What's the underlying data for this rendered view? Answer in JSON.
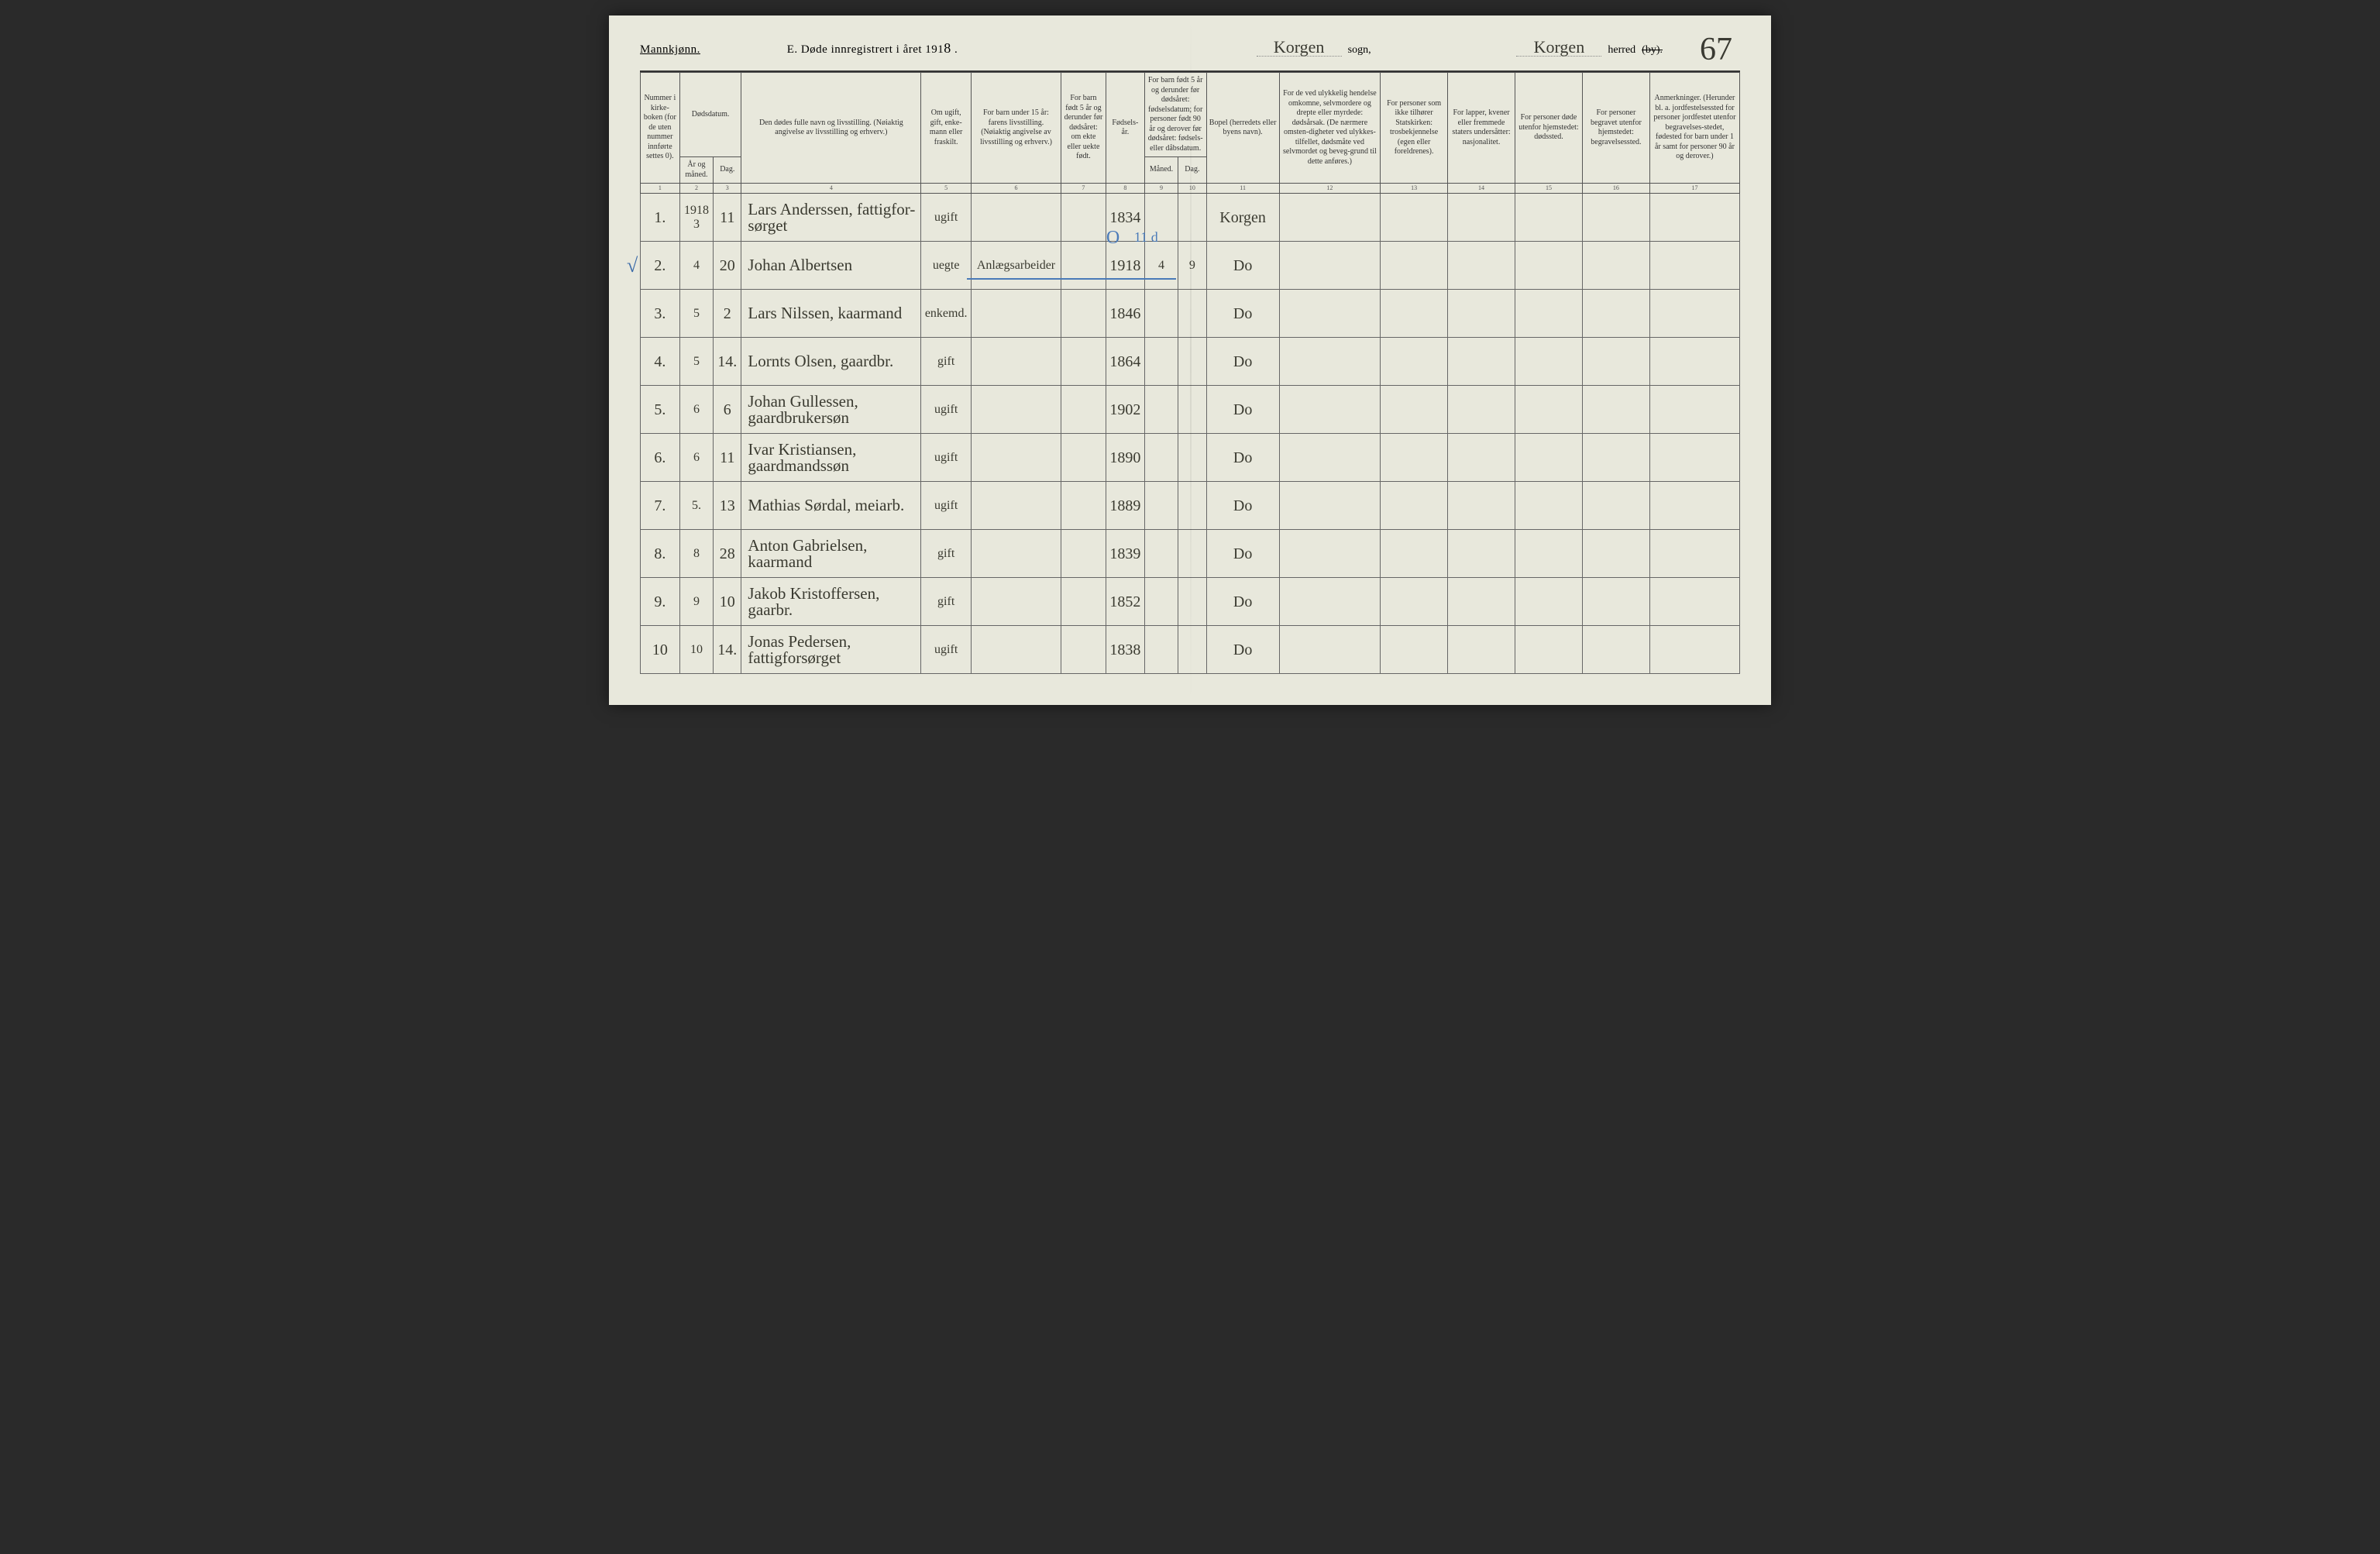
{
  "header": {
    "gender": "Mannkjønn.",
    "title_prefix": "E. Døde innregistrert i året 191",
    "title_year_suffix": "8",
    "title_period": ".",
    "sogn_value": "Korgen",
    "sogn_label": "sogn,",
    "herred_value": "Korgen",
    "herred_label": "herred",
    "herred_strike": "(by).",
    "page_number": "67"
  },
  "columns": {
    "c1": "Nummer i kirke-boken (for de uten nummer innførte settes 0).",
    "c2_top": "Dødsdatum.",
    "c2a": "År og måned.",
    "c2b": "Dag.",
    "c4": "Den dødes fulle navn og livsstilling. (Nøiaktig angivelse av livsstilling og erhverv.)",
    "c5": "Om ugift, gift, enke-mann eller fraskilt.",
    "c6": "For barn under 15 år: farens livsstilling. (Nøiaktig angivelse av livsstilling og erhverv.)",
    "c7": "For barn født 5 år og derunder før dødsåret: om ekte eller uekte født.",
    "c8": "Fødsels-år.",
    "c9_top": "For barn født 5 år og derunder før dødsåret: fødselsdatum; for personer født 90 år og derover før dødsåret: fødsels- eller dåbsdatum.",
    "c9a": "Måned.",
    "c9b": "Dag.",
    "c11": "Bopel (herredets eller byens navn).",
    "c12": "For de ved ulykkelig hendelse omkomne, selvmordere og drepte eller myrdede: dødsårsak. (De nærmere omsten-digheter ved ulykkes-tilfellet, dødsmåte ved selvmordet og beveg-grund til dette anføres.)",
    "c13": "For personer som ikke tilhører Statskirken: trosbekjennelse (egen eller foreldrenes).",
    "c14": "For lapper, kvener eller fremmede staters undersåtter: nasjonalitet.",
    "c15": "For personer døde utenfor hjemstedet: dødssted.",
    "c16": "For personer begravet utenfor hjemstedet: begravelsessted.",
    "c17": "Anmerkninger. (Herunder bl. a. jordfestelsessted for personer jordfestet utenfor begravelses-stedet, fødested for barn under 1 år samt for personer 90 år og derover.)"
  },
  "colnums": [
    "1",
    "2",
    "3",
    "4",
    "5",
    "6",
    "7",
    "8",
    "9",
    "10",
    "11",
    "12",
    "13",
    "14",
    "15",
    "16",
    "17"
  ],
  "rows": [
    {
      "n": "1.",
      "ym": "1918 3",
      "d": "11",
      "name": "Lars Anderssen, fattigfor-sørget",
      "status": "ugift",
      "father": "",
      "ekte": "",
      "birth": "1834",
      "bm": "",
      "bd": "",
      "bopel": "Korgen",
      "check": false,
      "annot": false
    },
    {
      "n": "2.",
      "ym": "4",
      "d": "20",
      "name": "Johan Albertsen",
      "status": "uegte",
      "father": "Anlægsarbeider",
      "ekte": "",
      "birth": "1918",
      "bm": "4",
      "bd": "9",
      "bopel": "Do",
      "check": true,
      "annot": true
    },
    {
      "n": "3.",
      "ym": "5",
      "d": "2",
      "name": "Lars Nilssen, kaarmand",
      "status": "enkemd.",
      "father": "",
      "ekte": "",
      "birth": "1846",
      "bm": "",
      "bd": "",
      "bopel": "Do",
      "check": false,
      "annot": false
    },
    {
      "n": "4.",
      "ym": "5",
      "d": "14.",
      "name": "Lornts Olsen, gaardbr.",
      "status": "gift",
      "father": "",
      "ekte": "",
      "birth": "1864",
      "bm": "",
      "bd": "",
      "bopel": "Do",
      "check": false,
      "annot": false
    },
    {
      "n": "5.",
      "ym": "6",
      "d": "6",
      "name": "Johan Gullessen, gaardbrukersøn",
      "status": "ugift",
      "father": "",
      "ekte": "",
      "birth": "1902",
      "bm": "",
      "bd": "",
      "bopel": "Do",
      "check": false,
      "annot": false
    },
    {
      "n": "6.",
      "ym": "6",
      "d": "11",
      "name": "Ivar Kristiansen, gaardmandssøn",
      "status": "ugift",
      "father": "",
      "ekte": "",
      "birth": "1890",
      "bm": "",
      "bd": "",
      "bopel": "Do",
      "check": false,
      "annot": false
    },
    {
      "n": "7.",
      "ym": "5.",
      "d": "13",
      "name": "Mathias Sørdal, meiarb.",
      "status": "ugift",
      "father": "",
      "ekte": "",
      "birth": "1889",
      "bm": "",
      "bd": "",
      "bopel": "Do",
      "check": false,
      "annot": false
    },
    {
      "n": "8.",
      "ym": "8",
      "d": "28",
      "name": "Anton Gabrielsen, kaarmand",
      "status": "gift",
      "father": "",
      "ekte": "",
      "birth": "1839",
      "bm": "",
      "bd": "",
      "bopel": "Do",
      "check": false,
      "annot": false
    },
    {
      "n": "9.",
      "ym": "9",
      "d": "10",
      "name": "Jakob Kristoffersen, gaarbr.",
      "status": "gift",
      "father": "",
      "ekte": "",
      "birth": "1852",
      "bm": "",
      "bd": "",
      "bopel": "Do",
      "check": false,
      "annot": false
    },
    {
      "n": "10",
      "ym": "10",
      "d": "14.",
      "name": "Jonas Pedersen, fattigforsørget",
      "status": "ugift",
      "father": "",
      "ekte": "",
      "birth": "1838",
      "bm": "",
      "bd": "",
      "bopel": "Do",
      "check": false,
      "annot": false
    }
  ],
  "annot": {
    "o": "O",
    "eleven_d": "11 d"
  }
}
